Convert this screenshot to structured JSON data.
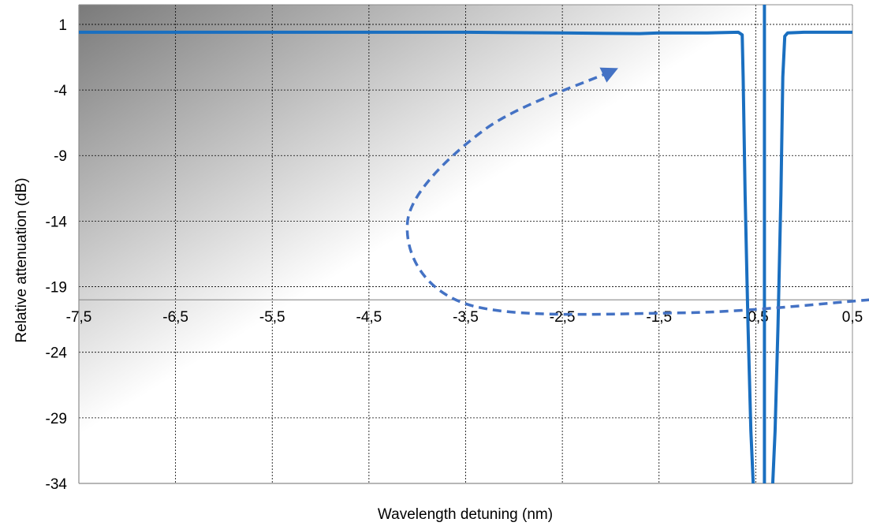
{
  "chart_data": {
    "type": "line",
    "title": "",
    "xlabel": "Wavelength detuning (nm)",
    "ylabel": "Relative attenuation (dB)",
    "xlim": [
      -7.5,
      0.5
    ],
    "ylim": [
      -34,
      2.5
    ],
    "x_axis_crosses_y_at": -20,
    "x_ticks": [
      -7.5,
      -6.5,
      -5.5,
      -4.5,
      -3.5,
      -2.5,
      -1.5,
      -0.5,
      0.5
    ],
    "x_tick_labels": [
      "-7,5",
      "-6,5",
      "-5,5",
      "-4,5",
      "-3,5",
      "-2,5",
      "-1,5",
      "-0,5",
      "0,5"
    ],
    "y_ticks": [
      1,
      -4,
      -9,
      -14,
      -19,
      -24,
      -29,
      -34
    ],
    "y_tick_labels": [
      "1",
      "-4",
      "-9",
      "-14",
      "-19",
      "-24",
      "-29",
      "-34"
    ],
    "grid": true,
    "background": "gradient from dark gray at top-left to white",
    "colors": {
      "series": "#1a6fc0",
      "arrow": "#4472c4",
      "grid": "#000000",
      "gradient_dark": "#7a7a7a"
    },
    "series": [
      {
        "points": [
          [
            -7.5,
            0.4
          ],
          [
            -6.5,
            0.4
          ],
          [
            -5.5,
            0.4
          ],
          [
            -4.5,
            0.4
          ],
          [
            -3.5,
            0.4
          ],
          [
            -2.5,
            0.35
          ],
          [
            -1.7,
            0.3
          ],
          [
            -1.5,
            0.35
          ],
          [
            -1.0,
            0.35
          ],
          [
            -0.68,
            0.4
          ],
          [
            -0.64,
            0.2
          ],
          [
            -0.63,
            -3
          ],
          [
            -0.61,
            -12
          ],
          [
            -0.58,
            -22
          ],
          [
            -0.55,
            -30
          ],
          [
            -0.52,
            -35
          ],
          [
            -0.5,
            -38
          ]
        ]
      },
      {
        "points": [
          [
            -0.41,
            2.5
          ],
          [
            -0.41,
            -38
          ]
        ]
      },
      {
        "points": [
          [
            -0.35,
            -38
          ],
          [
            -0.33,
            -35
          ],
          [
            -0.3,
            -30
          ],
          [
            -0.27,
            -22
          ],
          [
            -0.24,
            -12
          ],
          [
            -0.22,
            -3
          ],
          [
            -0.2,
            0.1
          ],
          [
            -0.17,
            0.35
          ],
          [
            0.0,
            0.4
          ],
          [
            0.5,
            0.4
          ]
        ]
      }
    ],
    "annotations": [
      {
        "type": "dashed-arrow",
        "description": "curved dashed arrow, starts right of 0.5 near the x-axis, loops left to about -4.1 nm at -14 dB and ends pointing up-right near -2.0 nm, -2.5 dB",
        "path": [
          [
            0.68,
            -20.0
          ],
          [
            -1.3,
            -21.0
          ],
          [
            -3.5,
            -20.3
          ],
          [
            -4.1,
            -14.0
          ],
          [
            -3.3,
            -7.0
          ],
          [
            -2.0,
            -2.6
          ]
        ]
      }
    ]
  }
}
